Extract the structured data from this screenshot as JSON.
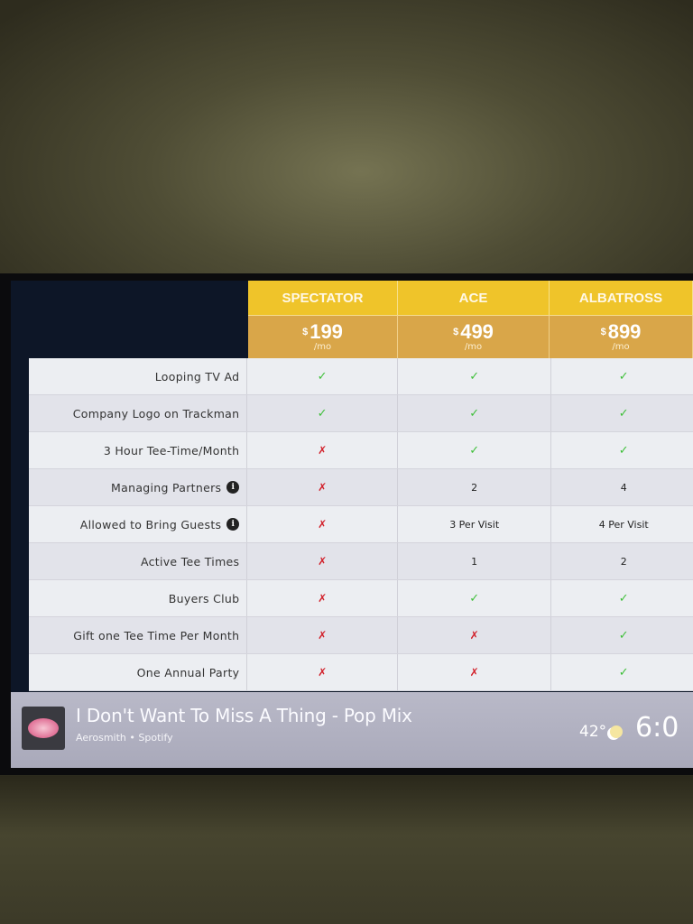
{
  "plans": [
    {
      "name": "SPECTATOR",
      "currency": "$",
      "price": "199",
      "period": "/mo"
    },
    {
      "name": "ACE",
      "currency": "$",
      "price": "499",
      "period": "/mo"
    },
    {
      "name": "ALBATROSS",
      "currency": "$",
      "price": "899",
      "period": "/mo"
    }
  ],
  "colors": {
    "header": "#efc42a",
    "price_band": "#d9a649",
    "check": "#3fbf3a",
    "cross": "#d2202a"
  },
  "features": [
    {
      "label": "Looping TV Ad",
      "info": false,
      "values": [
        "check",
        "check",
        "check"
      ]
    },
    {
      "label": "Company Logo on Trackman",
      "info": false,
      "values": [
        "check",
        "check",
        "check"
      ]
    },
    {
      "label": "3 Hour Tee-Time/Month",
      "info": false,
      "values": [
        "cross",
        "check",
        "check"
      ]
    },
    {
      "label": "Managing Partners",
      "info": true,
      "values": [
        "cross",
        "2",
        "4"
      ]
    },
    {
      "label": "Allowed to Bring Guests",
      "info": true,
      "values": [
        "cross",
        "3 Per Visit",
        "4 Per Visit"
      ]
    },
    {
      "label": "Active Tee Times",
      "info": false,
      "values": [
        "cross",
        "1",
        "2"
      ]
    },
    {
      "label": "Buyers Club",
      "info": false,
      "values": [
        "cross",
        "check",
        "check"
      ]
    },
    {
      "label": "Gift one Tee Time Per Month",
      "info": false,
      "values": [
        "cross",
        "cross",
        "check"
      ]
    },
    {
      "label": "One Annual Party",
      "info": false,
      "values": [
        "cross",
        "cross",
        "check"
      ]
    }
  ],
  "now_playing": {
    "title": "I Don't Want To Miss A Thing - Pop Mix",
    "subtitle": "Aerosmith • Spotify"
  },
  "status": {
    "temperature": "42°",
    "weather_icon": "partly-cloudy-icon",
    "time": "6:0"
  }
}
